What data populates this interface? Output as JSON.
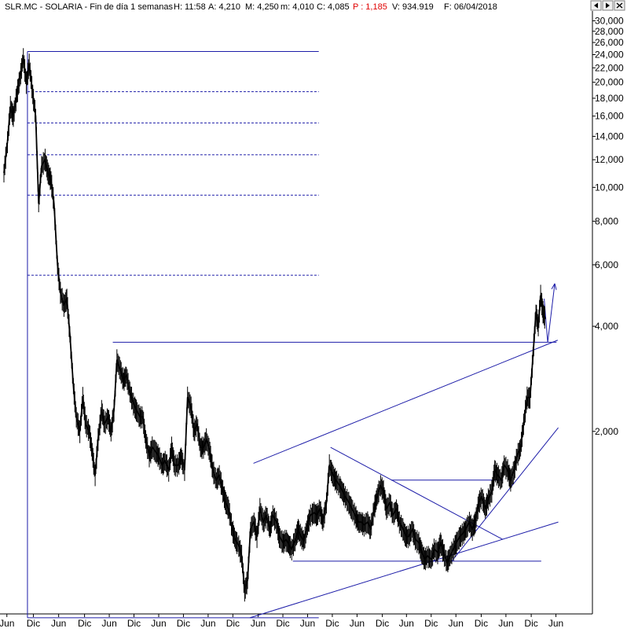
{
  "header": {
    "title": "SLR.MC - SOLARIA - Fin de día 1 semanas",
    "h": "H: 11:58",
    "a": "A: 4,210",
    "m": "M: 4,250",
    "mn": "m: 4,010",
    "c": "C: 4,085",
    "p": "P : 1,185",
    "v": "V: 934.919",
    "f": "F: 06/04/2018"
  },
  "window_buttons": {
    "left_icon": "arrow-left-icon",
    "right_icon": "arrow-right-icon",
    "close_icon": "close-icon"
  },
  "colors": {
    "price": "#000000",
    "trendline": "#1c1ca8",
    "background": "#ffffff"
  },
  "chart_data": {
    "type": "line",
    "title": "SLR.MC - SOLARIA",
    "y_scale": "log",
    "ylim": [
      0.6,
      32.0
    ],
    "xlim": [
      0,
      100
    ],
    "y_ticks": [
      {
        "label": "30,000",
        "value": 30.0
      },
      {
        "label": "28,000",
        "value": 28.0
      },
      {
        "label": "26,000",
        "value": 26.0
      },
      {
        "label": "24,000",
        "value": 24.0
      },
      {
        "label": "22,000",
        "value": 22.0
      },
      {
        "label": "20,000",
        "value": 20.0
      },
      {
        "label": "18,000",
        "value": 18.0
      },
      {
        "label": "16,000",
        "value": 16.0
      },
      {
        "label": "14,000",
        "value": 14.0
      },
      {
        "label": "12,000",
        "value": 12.0
      },
      {
        "label": "10,000",
        "value": 10.0
      },
      {
        "label": "8,000",
        "value": 8.0
      },
      {
        "label": "6,000",
        "value": 6.0
      },
      {
        "label": "4,000",
        "value": 4.0
      },
      {
        "label": "2,000",
        "value": 2.0
      }
    ],
    "x_ticks": [
      {
        "label": "Jun",
        "x": 0.5
      },
      {
        "label": "Dic",
        "x": 5.0
      },
      {
        "label": "Jun",
        "x": 9.3
      },
      {
        "label": "Dic",
        "x": 13.7
      },
      {
        "label": "Jun",
        "x": 17.9
      },
      {
        "label": "Dic",
        "x": 22.1
      },
      {
        "label": "Jun",
        "x": 26.3
      },
      {
        "label": "Dic",
        "x": 30.5
      },
      {
        "label": "Jun",
        "x": 34.7
      },
      {
        "label": "Dic",
        "x": 38.9
      },
      {
        "label": "Jun",
        "x": 43.2
      },
      {
        "label": "Dic",
        "x": 47.4
      },
      {
        "label": "Jun",
        "x": 51.6
      },
      {
        "label": "Dic",
        "x": 55.8
      },
      {
        "label": "Jun",
        "x": 60.0
      },
      {
        "label": "Dic",
        "x": 64.3
      },
      {
        "label": "Jun",
        "x": 68.4
      },
      {
        "label": "Dic",
        "x": 72.6
      },
      {
        "label": "Jun",
        "x": 76.8
      },
      {
        "label": "Dic",
        "x": 81.1
      },
      {
        "label": "Jun",
        "x": 85.3
      },
      {
        "label": "Dic",
        "x": 89.6
      },
      {
        "label": "Jun",
        "x": 93.8
      }
    ],
    "series": [
      {
        "points": [
          [
            0.0,
            11.0
          ],
          [
            0.6,
            13.5
          ],
          [
            1.1,
            17.0
          ],
          [
            1.6,
            16.0
          ],
          [
            2.2,
            18.5
          ],
          [
            2.7,
            20.5
          ],
          [
            3.3,
            23.5
          ],
          [
            3.8,
            20.0
          ],
          [
            4.3,
            22.5
          ],
          [
            4.9,
            18.5
          ],
          [
            5.4,
            16.0
          ],
          [
            5.9,
            9.0
          ],
          [
            6.4,
            11.5
          ],
          [
            7.0,
            12.0
          ],
          [
            7.5,
            11.0
          ],
          [
            8.0,
            10.5
          ],
          [
            8.5,
            9.0
          ],
          [
            9.1,
            6.0
          ],
          [
            9.6,
            5.0
          ],
          [
            10.2,
            4.6
          ],
          [
            10.7,
            4.8
          ],
          [
            11.2,
            3.8
          ],
          [
            11.8,
            2.7
          ],
          [
            12.3,
            2.2
          ],
          [
            12.9,
            2.0
          ],
          [
            13.4,
            2.5
          ],
          [
            13.9,
            2.1
          ],
          [
            14.5,
            2.0
          ],
          [
            15.0,
            1.75
          ],
          [
            15.5,
            1.5
          ],
          [
            16.0,
            1.9
          ],
          [
            16.6,
            2.3
          ],
          [
            17.1,
            2.1
          ],
          [
            17.7,
            2.2
          ],
          [
            18.2,
            2.0
          ],
          [
            18.7,
            2.3
          ],
          [
            19.2,
            3.2
          ],
          [
            19.8,
            3.0
          ],
          [
            20.3,
            2.8
          ],
          [
            20.8,
            2.9
          ],
          [
            21.4,
            2.6
          ],
          [
            22.0,
            2.4
          ],
          [
            22.5,
            2.3
          ],
          [
            23.1,
            2.2
          ],
          [
            23.6,
            2.2
          ],
          [
            24.1,
            1.9
          ],
          [
            24.7,
            1.7
          ],
          [
            25.2,
            1.8
          ],
          [
            25.8,
            1.75
          ],
          [
            26.3,
            1.7
          ],
          [
            26.9,
            1.6
          ],
          [
            27.4,
            1.65
          ],
          [
            28.0,
            1.55
          ],
          [
            28.5,
            1.8
          ],
          [
            29.0,
            1.6
          ],
          [
            29.6,
            1.6
          ],
          [
            30.1,
            1.7
          ],
          [
            30.7,
            1.55
          ],
          [
            31.2,
            2.5
          ],
          [
            31.8,
            2.35
          ],
          [
            32.3,
            2.0
          ],
          [
            32.8,
            2.1
          ],
          [
            33.4,
            1.8
          ],
          [
            33.9,
            1.8
          ],
          [
            34.4,
            1.9
          ],
          [
            35.0,
            1.75
          ],
          [
            35.5,
            1.55
          ],
          [
            36.1,
            1.45
          ],
          [
            36.6,
            1.5
          ],
          [
            37.2,
            1.35
          ],
          [
            37.7,
            1.25
          ],
          [
            38.2,
            1.2
          ],
          [
            38.8,
            1.05
          ],
          [
            39.3,
            0.98
          ],
          [
            39.9,
            0.94
          ],
          [
            40.4,
            0.88
          ],
          [
            40.9,
            0.7
          ],
          [
            41.4,
            0.75
          ],
          [
            41.9,
            1.05
          ],
          [
            42.5,
            1.1
          ],
          [
            43.0,
            1.0
          ],
          [
            43.5,
            1.2
          ],
          [
            44.1,
            1.1
          ],
          [
            44.6,
            1.15
          ],
          [
            45.2,
            1.05
          ],
          [
            45.7,
            1.15
          ],
          [
            46.3,
            1.1
          ],
          [
            46.8,
            1.0
          ],
          [
            47.4,
            0.96
          ],
          [
            47.9,
            0.98
          ],
          [
            48.4,
            0.95
          ],
          [
            48.9,
            0.92
          ],
          [
            49.5,
            0.98
          ],
          [
            50.0,
            1.05
          ],
          [
            50.5,
            1.0
          ],
          [
            51.0,
            0.97
          ],
          [
            51.6,
            1.08
          ],
          [
            52.1,
            1.15
          ],
          [
            52.7,
            1.17
          ],
          [
            53.2,
            1.15
          ],
          [
            53.7,
            1.2
          ],
          [
            54.2,
            1.1
          ],
          [
            54.8,
            1.25
          ],
          [
            55.3,
            1.6
          ],
          [
            55.9,
            1.5
          ],
          [
            56.4,
            1.45
          ],
          [
            57.0,
            1.4
          ],
          [
            57.5,
            1.35
          ],
          [
            58.0,
            1.3
          ],
          [
            58.6,
            1.25
          ],
          [
            59.1,
            1.2
          ],
          [
            59.7,
            1.15
          ],
          [
            60.2,
            1.1
          ],
          [
            60.7,
            1.1
          ],
          [
            61.2,
            1.08
          ],
          [
            61.8,
            1.1
          ],
          [
            62.3,
            1.05
          ],
          [
            62.9,
            1.2
          ],
          [
            63.4,
            1.3
          ],
          [
            64.0,
            1.4
          ],
          [
            64.5,
            1.35
          ],
          [
            65.0,
            1.2
          ],
          [
            65.6,
            1.25
          ],
          [
            66.1,
            1.15
          ],
          [
            66.7,
            1.2
          ],
          [
            67.2,
            1.1
          ],
          [
            67.8,
            1.05
          ],
          [
            68.3,
            1.0
          ],
          [
            68.8,
            1.0
          ],
          [
            69.4,
            1.05
          ],
          [
            69.9,
            0.98
          ],
          [
            70.5,
            0.96
          ],
          [
            71.0,
            0.9
          ],
          [
            71.5,
            0.86
          ],
          [
            72.0,
            0.88
          ],
          [
            72.6,
            0.86
          ],
          [
            73.1,
            0.92
          ],
          [
            73.7,
            0.9
          ],
          [
            74.2,
            0.96
          ],
          [
            74.7,
            0.9
          ],
          [
            75.3,
            0.84
          ],
          [
            75.8,
            0.88
          ],
          [
            76.4,
            0.92
          ],
          [
            76.9,
            0.96
          ],
          [
            77.5,
            1.0
          ],
          [
            78.0,
            1.02
          ],
          [
            78.5,
            1.05
          ],
          [
            79.1,
            1.1
          ],
          [
            79.6,
            1.05
          ],
          [
            80.1,
            1.1
          ],
          [
            80.7,
            1.25
          ],
          [
            81.2,
            1.3
          ],
          [
            81.8,
            1.2
          ],
          [
            82.3,
            1.28
          ],
          [
            82.9,
            1.35
          ],
          [
            83.4,
            1.55
          ],
          [
            83.9,
            1.5
          ],
          [
            84.5,
            1.45
          ],
          [
            85.0,
            1.6
          ],
          [
            85.6,
            1.55
          ],
          [
            86.1,
            1.45
          ],
          [
            86.7,
            1.55
          ],
          [
            87.2,
            1.7
          ],
          [
            87.8,
            1.8
          ],
          [
            88.3,
            2.1
          ],
          [
            88.9,
            2.5
          ],
          [
            89.4,
            2.5
          ],
          [
            89.9,
            3.3
          ],
          [
            90.4,
            4.4
          ],
          [
            90.8,
            4.0
          ],
          [
            91.2,
            4.9
          ],
          [
            91.6,
            4.4
          ],
          [
            92.0,
            4.2
          ]
        ]
      }
    ],
    "trendlines": [
      {
        "x1": 4.0,
        "y1": 0.585,
        "x2": 4.0,
        "y2": 24.5
      },
      {
        "x1": 4.0,
        "y1": 24.5,
        "x2": 53.5,
        "y2": 24.5
      },
      {
        "x1": 4.0,
        "y1": 0.585,
        "x2": 53.5,
        "y2": 0.585
      },
      {
        "x1": 41.8,
        "y1": 0.585,
        "x2": 94.2,
        "y2": 1.1
      },
      {
        "x1": 42.4,
        "y1": 1.62,
        "x2": 94.1,
        "y2": 3.65
      },
      {
        "x1": 18.5,
        "y1": 3.6,
        "x2": 93.9,
        "y2": 3.6
      },
      {
        "x1": 49.1,
        "y1": 0.85,
        "x2": 91.3,
        "y2": 0.85
      },
      {
        "x1": 65.8,
        "y1": 1.45,
        "x2": 84.8,
        "y2": 1.45
      },
      {
        "x1": 55.5,
        "y1": 1.8,
        "x2": 84.8,
        "y2": 0.98
      },
      {
        "x1": 76.1,
        "y1": 0.85,
        "x2": 94.2,
        "y2": 2.05
      },
      {
        "x1": 92.4,
        "y1": 3.6,
        "x2": 91.8,
        "y2": 4.8
      },
      {
        "x1": 92.4,
        "y1": 3.6,
        "x2": 93.6,
        "y2": 5.3
      }
    ],
    "dashed_levels": [
      {
        "x1": 4.0,
        "x2": 53.5,
        "y": 18.8
      },
      {
        "x1": 4.0,
        "x2": 53.5,
        "y": 15.3
      },
      {
        "x1": 4.0,
        "x2": 53.5,
        "y": 12.4
      },
      {
        "x1": 4.0,
        "x2": 53.5,
        "y": 9.5
      },
      {
        "x1": 4.0,
        "x2": 53.5,
        "y": 5.6
      }
    ]
  }
}
